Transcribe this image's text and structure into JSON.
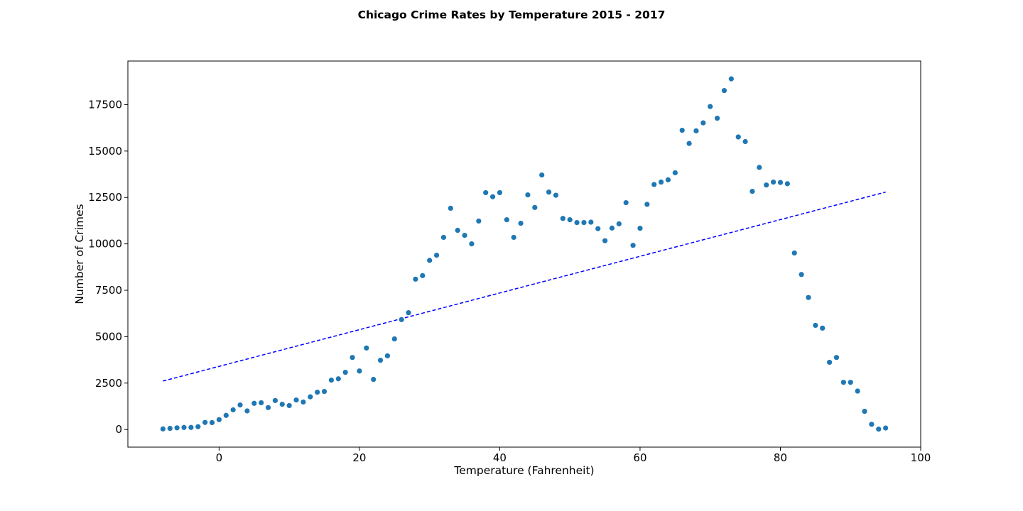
{
  "chart_data": {
    "type": "scatter",
    "title": "Chicago Crime Rates by Temperature 2015 - 2017",
    "xlabel": "Temperature (Fahrenheit)",
    "ylabel": "Number of Crimes",
    "xlim": [
      -13,
      100
    ],
    "ylim": [
      -950,
      19850
    ],
    "xticks": [
      0,
      20,
      40,
      60,
      80,
      100
    ],
    "yticks": [
      0,
      2500,
      5000,
      7500,
      10000,
      12500,
      15000,
      17500
    ],
    "grid": false,
    "legend": "none",
    "colors": {
      "points": "#1f77b4",
      "trendline": "#0000ff"
    },
    "series": [
      {
        "x": [
          -8,
          -7,
          -6,
          -5,
          -4,
          -3,
          -2,
          -1,
          0,
          1,
          2,
          3,
          4,
          5,
          6,
          7,
          8,
          9,
          10,
          11,
          12,
          13,
          14,
          15,
          16,
          17,
          18,
          19,
          20,
          21,
          22,
          23,
          24,
          25,
          26,
          27,
          28,
          29,
          30,
          31,
          32,
          33,
          34,
          35,
          36,
          37,
          38,
          39,
          40,
          41,
          42,
          43,
          44,
          45,
          46,
          47,
          48,
          49,
          50,
          51,
          52,
          53,
          54,
          55,
          56,
          57,
          58,
          59,
          60,
          61,
          62,
          63,
          64,
          65,
          66,
          67,
          68,
          69,
          70,
          71,
          72,
          73,
          74,
          75,
          76,
          77,
          78,
          79,
          80,
          81,
          82,
          83,
          84,
          85,
          86,
          87,
          88,
          89,
          90,
          91,
          92,
          93,
          94,
          95
        ],
        "y": [
          30,
          60,
          90,
          110,
          110,
          150,
          380,
          370,
          530,
          760,
          1060,
          1320,
          1000,
          1410,
          1440,
          1180,
          1560,
          1360,
          1290,
          1590,
          1480,
          1760,
          2010,
          2050,
          2660,
          2730,
          3080,
          3880,
          3150,
          4390,
          2700,
          3730,
          3970,
          4880,
          5920,
          6290,
          8100,
          8290,
          9110,
          9390,
          10350,
          11920,
          10730,
          10460,
          10000,
          11230,
          12760,
          12540,
          12760,
          11300,
          10350,
          11110,
          12640,
          11960,
          13710,
          12790,
          12620,
          11370,
          11300,
          11150,
          11150,
          11170,
          10820,
          10170,
          10850,
          11080,
          12220,
          9920,
          10840,
          12130,
          13200,
          13330,
          13450,
          13830,
          16120,
          15410,
          16090,
          16520,
          17400,
          16770,
          18260,
          18890,
          15760,
          15510,
          12830,
          14120,
          13170,
          13330,
          13310,
          13240,
          9510,
          8350,
          7110,
          5610,
          5460,
          3620,
          3880,
          2540,
          2540,
          2070,
          980,
          280,
          20,
          80
        ]
      }
    ],
    "trendline": {
      "x": [
        -8,
        95
      ],
      "y": [
        2610,
        12790
      ]
    }
  }
}
